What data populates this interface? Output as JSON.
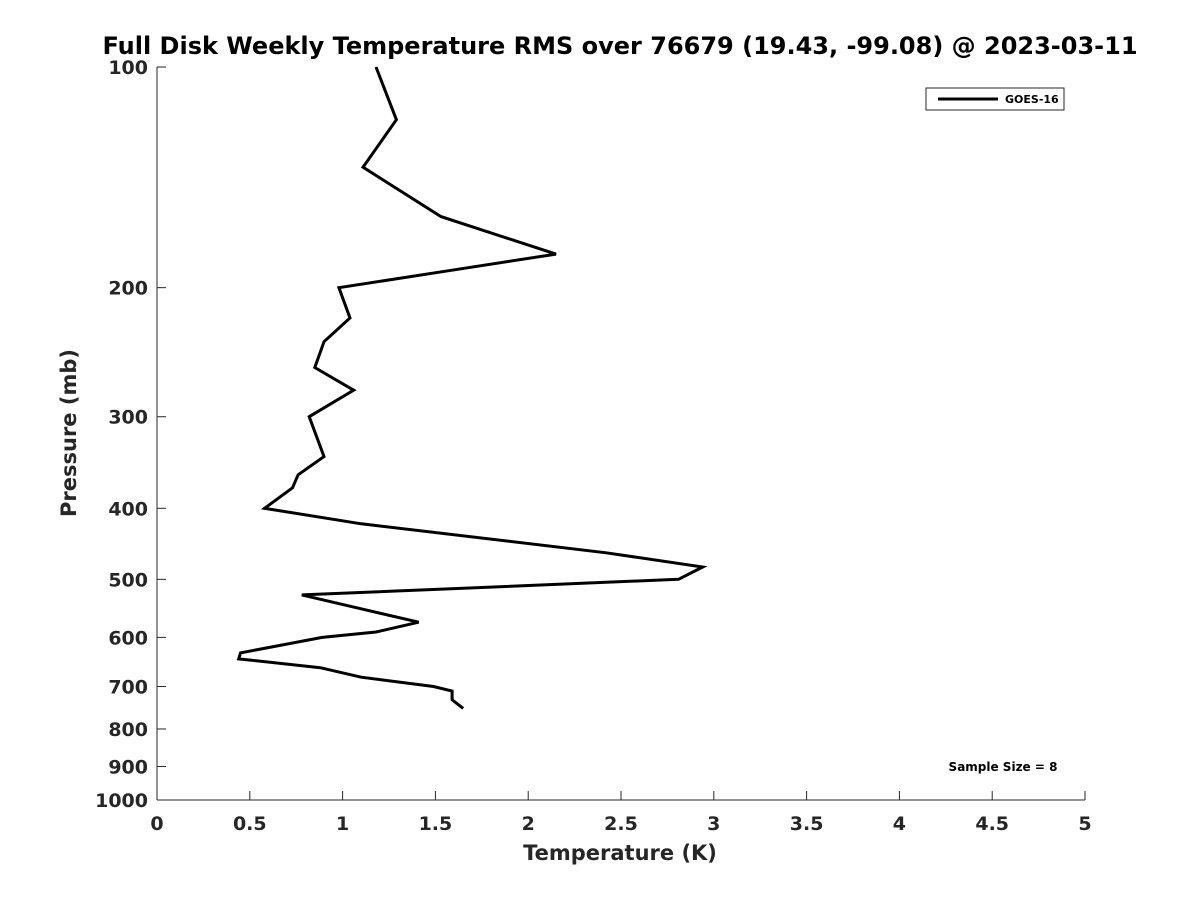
{
  "chart_data": {
    "type": "line",
    "title": "Full Disk Weekly Temperature RMS over 76679 (19.43, -99.08) @ 2023-03-11",
    "xlabel": "Temperature (K)",
    "ylabel": "Pressure (mb)",
    "xlim": [
      0,
      5
    ],
    "ylim": [
      100,
      1000
    ],
    "y_scale": "log",
    "y_reversed": true,
    "grid": false,
    "legend_position": "top-right",
    "x_ticks": [
      0,
      0.5,
      1,
      1.5,
      2,
      2.5,
      3,
      3.5,
      4,
      4.5,
      5
    ],
    "x_tick_labels": [
      "0",
      "0.5",
      "1",
      "1.5",
      "2",
      "2.5",
      "3",
      "3.5",
      "4",
      "4.5",
      "5"
    ],
    "y_ticks": [
      100,
      200,
      300,
      400,
      500,
      600,
      700,
      800,
      900,
      1000
    ],
    "y_tick_labels": [
      "100",
      "200",
      "300",
      "400",
      "500",
      "600",
      "700",
      "800",
      "900",
      "1000"
    ],
    "series": [
      {
        "name": "GOES-16",
        "color": "#000000",
        "points": [
          {
            "x": 1.18,
            "y": 100
          },
          {
            "x": 1.29,
            "y": 118
          },
          {
            "x": 1.11,
            "y": 137
          },
          {
            "x": 1.53,
            "y": 160
          },
          {
            "x": 2.15,
            "y": 180
          },
          {
            "x": 1.55,
            "y": 190
          },
          {
            "x": 0.98,
            "y": 200
          },
          {
            "x": 1.04,
            "y": 220
          },
          {
            "x": 0.9,
            "y": 237
          },
          {
            "x": 0.85,
            "y": 257
          },
          {
            "x": 1.06,
            "y": 276
          },
          {
            "x": 0.82,
            "y": 300
          },
          {
            "x": 0.9,
            "y": 340
          },
          {
            "x": 0.76,
            "y": 360
          },
          {
            "x": 0.73,
            "y": 375
          },
          {
            "x": 0.58,
            "y": 400
          },
          {
            "x": 1.1,
            "y": 420
          },
          {
            "x": 2.42,
            "y": 460
          },
          {
            "x": 2.94,
            "y": 481
          },
          {
            "x": 2.81,
            "y": 500
          },
          {
            "x": 0.78,
            "y": 525
          },
          {
            "x": 1.12,
            "y": 550
          },
          {
            "x": 1.41,
            "y": 572
          },
          {
            "x": 1.18,
            "y": 590
          },
          {
            "x": 0.89,
            "y": 600
          },
          {
            "x": 0.45,
            "y": 630
          },
          {
            "x": 0.44,
            "y": 642
          },
          {
            "x": 0.88,
            "y": 660
          },
          {
            "x": 1.1,
            "y": 680
          },
          {
            "x": 1.49,
            "y": 700
          },
          {
            "x": 1.59,
            "y": 710
          },
          {
            "x": 1.59,
            "y": 730
          },
          {
            "x": 1.65,
            "y": 750
          }
        ]
      }
    ],
    "annotations": [
      "Sample Size = 8"
    ]
  }
}
